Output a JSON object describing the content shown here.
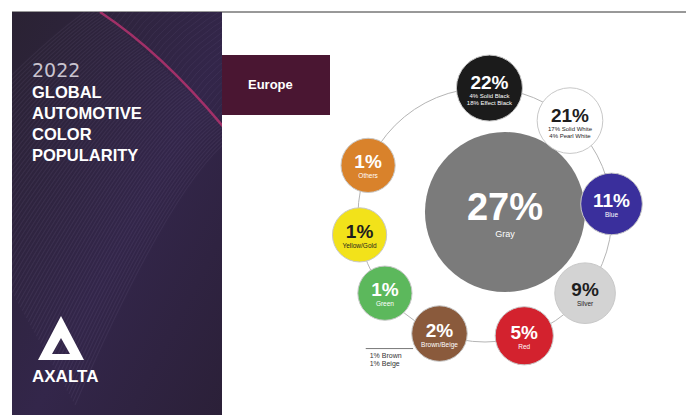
{
  "chart_data": {
    "type": "bubble",
    "year_label": "2022",
    "title": "GLOBAL AUTOMOTIVE COLOR POPULARITY",
    "region": "Europe",
    "brand": "AXALTA",
    "categories": [
      "Gray",
      null,
      null,
      "Blue",
      "Silver",
      "Red",
      "Brown/Beige",
      "Green",
      "Yellow/Gold",
      "Others"
    ],
    "values": [
      27,
      22,
      21,
      11,
      9,
      5,
      2,
      1,
      1,
      1
    ],
    "value_labels": [
      "27%",
      "22%",
      "21%",
      "11%",
      "9%",
      "5%",
      "2%",
      "1%",
      "1%",
      "1%"
    ],
    "colors": [
      "#7b7b7b",
      "#1b1b1b",
      "#ffffff",
      "#3a2f9c",
      "#d3d3d3",
      "#d3222e",
      "#8a5a3c",
      "#5cb85c",
      "#f2e21a",
      "#d9822b"
    ],
    "details": [
      null,
      {
        "values": [
          4,
          18
        ],
        "value_labels": [
          "4% Solid Black",
          "18% Effect Black"
        ]
      },
      {
        "values": [
          17,
          4
        ],
        "value_labels": [
          "17% Solid White",
          "4% Pearl White"
        ]
      },
      null,
      null,
      null,
      {
        "values": [
          1,
          1
        ],
        "value_labels": [
          "1% Brown",
          "1% Beige"
        ]
      },
      null,
      null,
      null
    ],
    "data_labels": true
  }
}
